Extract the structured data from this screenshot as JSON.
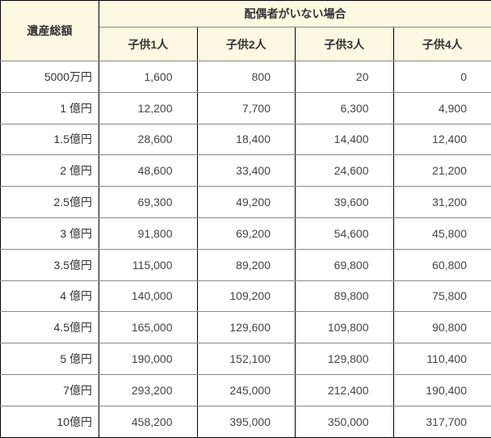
{
  "table": {
    "corner_header": "遺産総額",
    "group_header": "配偶者がいない場合",
    "column_headers": [
      "子供1人",
      "子供2人",
      "子供3人",
      "子供4人"
    ],
    "rows": [
      {
        "label": "5000万円",
        "values": [
          "1,600",
          "800",
          "20",
          "0"
        ]
      },
      {
        "label": "1 億円",
        "values": [
          "12,200",
          "7,700",
          "6,300",
          "4,900"
        ]
      },
      {
        "label": "1.5億円",
        "values": [
          "28,600",
          "18,400",
          "14,400",
          "12,400"
        ]
      },
      {
        "label": "2 億円",
        "values": [
          "48,600",
          "33,400",
          "24,600",
          "21,200"
        ]
      },
      {
        "label": "2.5億円",
        "values": [
          "69,300",
          "49,200",
          "39,600",
          "31,200"
        ]
      },
      {
        "label": "3 億円",
        "values": [
          "91,800",
          "69,200",
          "54,600",
          "45,800"
        ]
      },
      {
        "label": "3.5億円",
        "values": [
          "115,000",
          "89,200",
          "69,800",
          "60,800"
        ]
      },
      {
        "label": "4 億円",
        "values": [
          "140,000",
          "109,200",
          "89,800",
          "75,800"
        ]
      },
      {
        "label": "4.5億円",
        "values": [
          "165,000",
          "129,600",
          "109,800",
          "90,800"
        ]
      },
      {
        "label": "5 億円",
        "values": [
          "190,000",
          "152,100",
          "129,800",
          "110,400"
        ]
      },
      {
        "label": "7億円",
        "values": [
          "293,200",
          "245,000",
          "212,400",
          "190,400"
        ]
      },
      {
        "label": "10億円",
        "values": [
          "458,200",
          "395,000",
          "350,000",
          "317,700"
        ]
      }
    ]
  },
  "colors": {
    "header-bg": "#fcf9e3",
    "border-dark": "#000000",
    "border-light": "#888888",
    "text": "#444444"
  }
}
